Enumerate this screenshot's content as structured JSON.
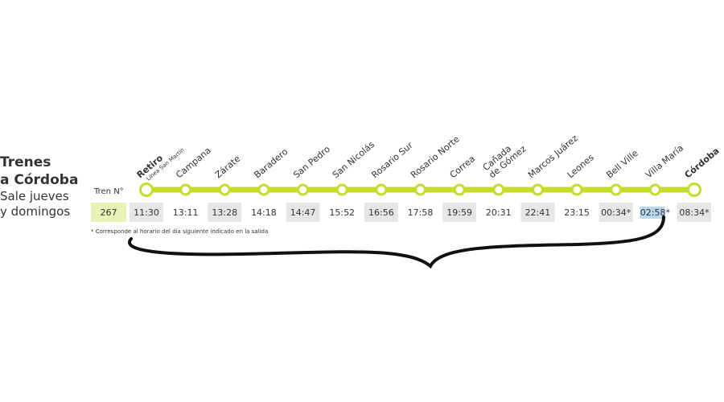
{
  "header": {
    "title": [
      "Trenes",
      "a Córdoba"
    ],
    "subtitle": [
      "Sale jueves",
      "y domingos"
    ]
  },
  "train_label": "Tren N°",
  "train_number": "267",
  "stations": [
    {
      "lines": [
        "Retiro"
      ],
      "note": "Línea San Martín",
      "time": "11:30"
    },
    {
      "lines": [
        "Campana"
      ],
      "time": "13:11"
    },
    {
      "lines": [
        "Zárate"
      ],
      "time": "13:28"
    },
    {
      "lines": [
        "Baradero"
      ],
      "time": "14:18"
    },
    {
      "lines": [
        "San Pedro"
      ],
      "time": "14:47"
    },
    {
      "lines": [
        "San Nicolás"
      ],
      "time": "15:52"
    },
    {
      "lines": [
        "Rosario Sur"
      ],
      "time": "16:56"
    },
    {
      "lines": [
        "Rosario Norte"
      ],
      "time": "17:58"
    },
    {
      "lines": [
        "Correa"
      ],
      "time": "19:59"
    },
    {
      "lines": [
        "Cañada",
        "de Gómez"
      ],
      "time": "20:31"
    },
    {
      "lines": [
        "Marcos Juárez"
      ],
      "time": "22:41"
    },
    {
      "lines": [
        "Leones"
      ],
      "time": "23:15"
    },
    {
      "lines": [
        "Bell Ville"
      ],
      "time": "00:34*"
    },
    {
      "lines": [
        "Villa María"
      ],
      "time": "02:58*"
    },
    {
      "lines": [
        "Córdoba"
      ],
      "time": "08:34*"
    }
  ],
  "footnote": "* Corresponde al horario del día siguiente indicado en la salida"
}
